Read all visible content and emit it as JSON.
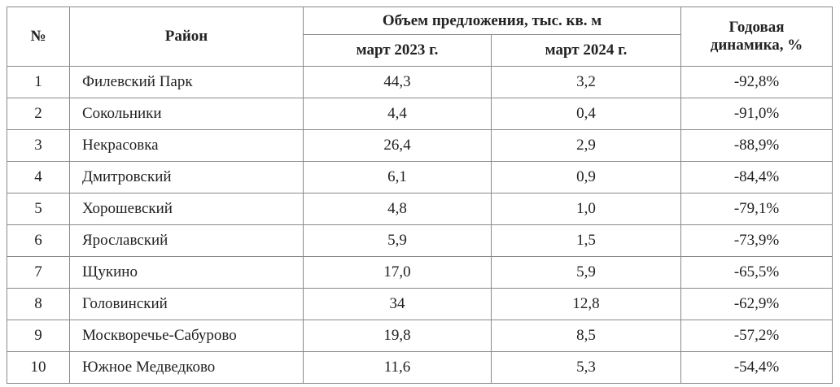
{
  "table": {
    "header": {
      "number": "№",
      "district": "Район",
      "volume": "Объем предложения, тыс. кв. м",
      "march_2023": "март 2023 г.",
      "march_2024": "март 2024 г.",
      "dynamics": "Годовая динамика, %"
    },
    "rows": [
      [
        "1",
        "Филевский Парк",
        "44,3",
        "3,2",
        "-92,8%"
      ],
      [
        "2",
        "Сокольники",
        "4,4",
        "0,4",
        "-91,0%"
      ],
      [
        "3",
        "Некрасовка",
        "26,4",
        "2,9",
        "-88,9%"
      ],
      [
        "4",
        "Дмитровский",
        "6,1",
        "0,9",
        "-84,4%"
      ],
      [
        "5",
        "Хорошевский",
        "4,8",
        "1,0",
        "-79,1%"
      ],
      [
        "6",
        "Ярославский",
        "5,9",
        "1,5",
        "-73,9%"
      ],
      [
        "7",
        "Щукино",
        "17,0",
        "5,9",
        "-65,5%"
      ],
      [
        "8",
        "Головинский",
        "34",
        "12,8",
        "-62,9%"
      ],
      [
        "9",
        "Москворечье-Сабурово",
        "19,8",
        "8,5",
        "-57,2%"
      ],
      [
        "10",
        "Южное Медведково",
        "11,6",
        "5,3",
        "-54,4%"
      ]
    ]
  }
}
